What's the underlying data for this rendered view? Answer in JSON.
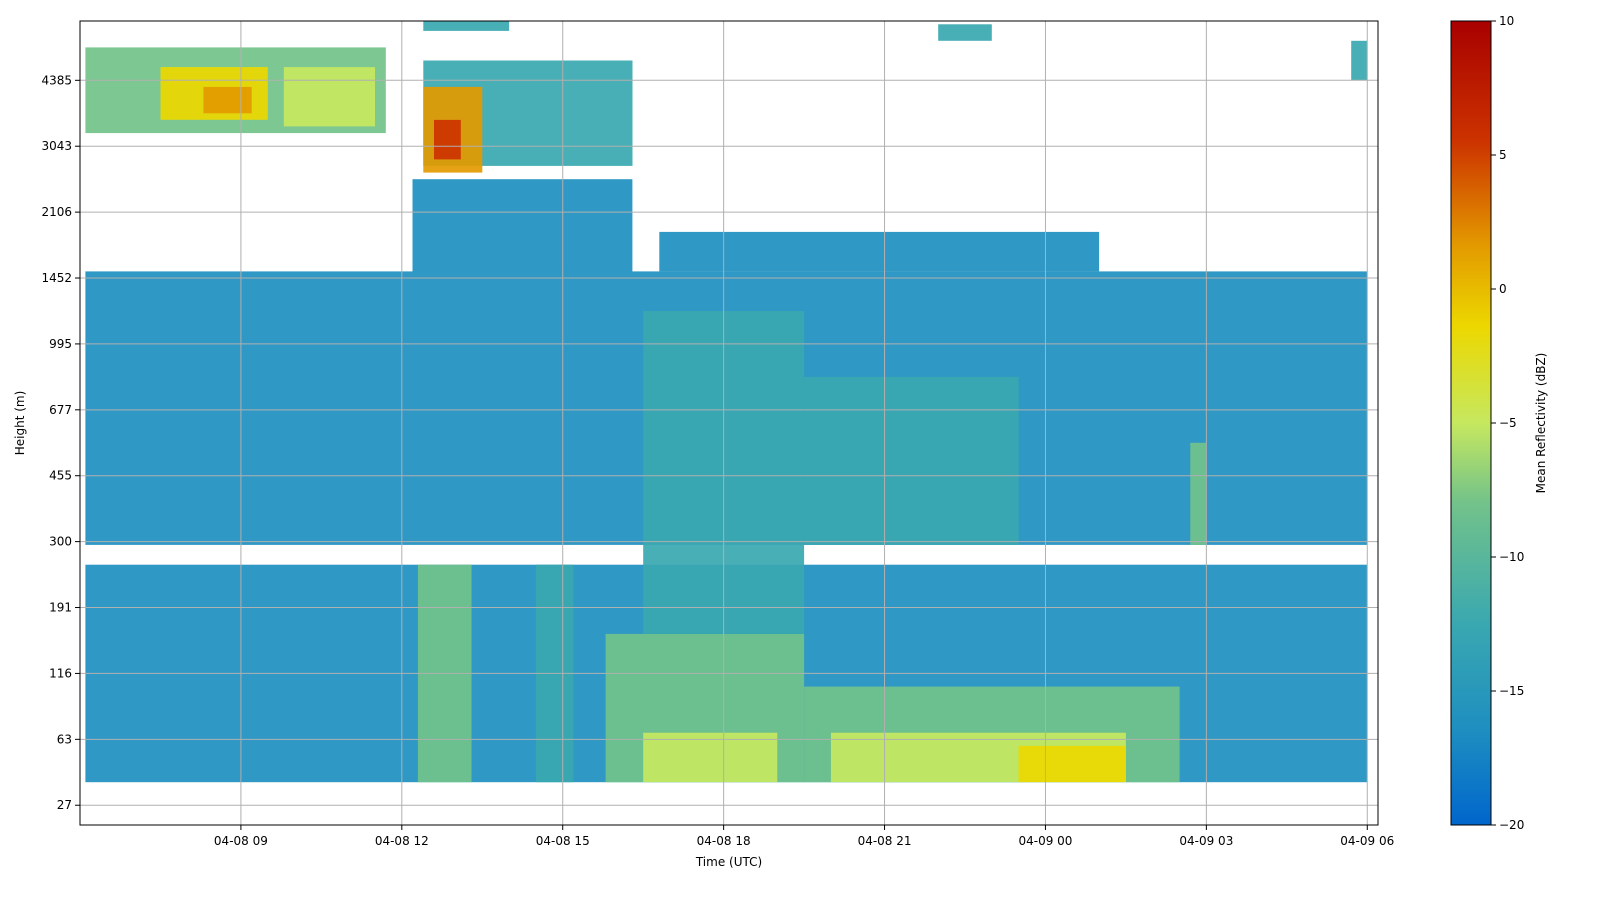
{
  "chart_data": {
    "type": "heatmap",
    "xlabel": "Time (UTC)",
    "ylabel": "Height (m)",
    "colorbar_label": "Mean Reflectivity (dBZ)",
    "x_ticks": [
      "04-08 09",
      "04-08 12",
      "04-08 15",
      "04-08 18",
      "04-08 21",
      "04-09 00",
      "04-09 03",
      "04-09 06"
    ],
    "y_ticks": [
      "27",
      "63",
      "116",
      "191",
      "300",
      "455",
      "677",
      "995",
      "1452",
      "2106",
      "3043",
      "4385"
    ],
    "colorbar_ticks": [
      "10",
      "5",
      "0",
      "−5",
      "−10",
      "−15",
      "−20"
    ],
    "value_range": [
      -20,
      10
    ],
    "grid": true,
    "colormap": [
      "#0066cc",
      "#1e8fc0",
      "#3aa8b0",
      "#72c28a",
      "#c6e85f",
      "#ecd800",
      "#e39a00",
      "#cc3300",
      "#a80000"
    ],
    "x_range_hours": [
      6.0,
      30.2
    ],
    "y_range_index": [
      -0.3,
      11.9
    ],
    "regions": [
      {
        "t": [
          6.1,
          30.0
        ],
        "h": [
          0.35,
          3.65
        ],
        "v": -15
      },
      {
        "t": [
          6.1,
          30.0
        ],
        "h": [
          3.95,
          8.1
        ],
        "v": -17
      },
      {
        "t": [
          12.2,
          16.3
        ],
        "h": [
          8.1,
          9.5
        ],
        "v": -17
      },
      {
        "t": [
          16.8,
          25.0
        ],
        "h": [
          8.1,
          8.7
        ],
        "v": -16
      },
      {
        "t": [
          15.8,
          19.5
        ],
        "h": [
          0.35,
          2.6
        ],
        "v": -7
      },
      {
        "t": [
          19.5,
          26.5
        ],
        "h": [
          0.35,
          1.8
        ],
        "v": -9
      },
      {
        "t": [
          16.5,
          19.0
        ],
        "h": [
          0.35,
          1.1
        ],
        "v": -5
      },
      {
        "t": [
          20.0,
          25.5
        ],
        "h": [
          0.35,
          1.1
        ],
        "v": -4
      },
      {
        "t": [
          23.5,
          25.5
        ],
        "h": [
          0.35,
          0.9
        ],
        "v": -2
      },
      {
        "t": [
          16.5,
          19.5
        ],
        "h": [
          2.6,
          7.5
        ],
        "v": -11
      },
      {
        "t": [
          19.5,
          23.5
        ],
        "h": [
          3.95,
          6.5
        ],
        "v": -13
      },
      {
        "t": [
          12.3,
          13.3
        ],
        "h": [
          0.35,
          3.65
        ],
        "v": -10
      },
      {
        "t": [
          14.5,
          15.2
        ],
        "h": [
          0.35,
          3.65
        ],
        "v": -12
      },
      {
        "t": [
          26.7,
          27.0
        ],
        "h": [
          3.95,
          5.5
        ],
        "v": -9
      },
      {
        "t": [
          6.1,
          11.7
        ],
        "h": [
          10.2,
          11.5
        ],
        "v": -9
      },
      {
        "t": [
          7.5,
          9.5
        ],
        "h": [
          10.4,
          11.2
        ],
        "v": -2
      },
      {
        "t": [
          9.8,
          11.5
        ],
        "h": [
          10.3,
          11.2
        ],
        "v": -4
      },
      {
        "t": [
          8.3,
          9.2
        ],
        "h": [
          10.5,
          10.9
        ],
        "v": 3
      },
      {
        "t": [
          12.4,
          16.3
        ],
        "h": [
          9.7,
          11.3
        ],
        "v": -12
      },
      {
        "t": [
          12.4,
          13.5
        ],
        "h": [
          9.6,
          10.9
        ],
        "v": 1
      },
      {
        "t": [
          12.6,
          13.1
        ],
        "h": [
          9.8,
          10.4
        ],
        "v": 5
      },
      {
        "t": [
          12.4,
          14.0
        ],
        "h": [
          11.75,
          11.9
        ],
        "v": -12
      },
      {
        "t": [
          22.0,
          23.0
        ],
        "h": [
          11.6,
          11.85
        ],
        "v": -13
      },
      {
        "t": [
          29.7,
          30.0
        ],
        "h": [
          11.0,
          11.6
        ],
        "v": -13
      }
    ]
  }
}
